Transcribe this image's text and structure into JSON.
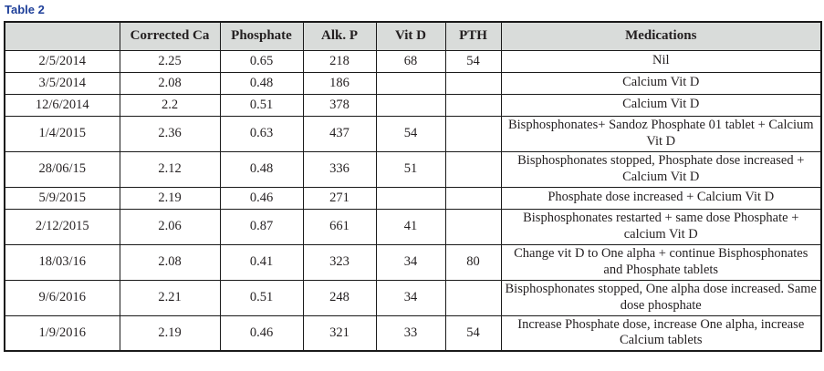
{
  "title": "Table 2",
  "table": {
    "columns": [
      "",
      "Corrected Ca",
      "Phosphate",
      "Alk. P",
      "Vit D",
      "PTH",
      "Medications"
    ],
    "rows": [
      {
        "date": "2/5/2014",
        "corrected_ca": "2.25",
        "phosphate": "0.65",
        "alk_p": "218",
        "vit_d": "68",
        "pth": "54",
        "medications": "Nil"
      },
      {
        "date": "3/5/2014",
        "corrected_ca": "2.08",
        "phosphate": "0.48",
        "alk_p": "186",
        "vit_d": "",
        "pth": "",
        "medications": "Calcium Vit D"
      },
      {
        "date": "12/6/2014",
        "corrected_ca": "2.2",
        "phosphate": "0.51",
        "alk_p": "378",
        "vit_d": "",
        "pth": "",
        "medications": "Calcium Vit D"
      },
      {
        "date": "1/4/2015",
        "corrected_ca": "2.36",
        "phosphate": "0.63",
        "alk_p": "437",
        "vit_d": "54",
        "pth": "",
        "medications": "Bisphosphonates+  Sandoz Phosphate 01 tablet + Calcium Vit D"
      },
      {
        "date": "28/06/15",
        "corrected_ca": "2.12",
        "phosphate": "0.48",
        "alk_p": "336",
        "vit_d": "51",
        "pth": "",
        "medications": "Bisphosphonates stopped,  Phosphate dose increased + Calcium Vit D"
      },
      {
        "date": "5/9/2015",
        "corrected_ca": "2.19",
        "phosphate": "0.46",
        "alk_p": "271",
        "vit_d": "",
        "pth": "",
        "medications": "Phosphate dose increased + Calcium Vit D"
      },
      {
        "date": "2/12/2015",
        "corrected_ca": "2.06",
        "phosphate": "0.87",
        "alk_p": "661",
        "vit_d": "41",
        "pth": "",
        "medications": "Bisphosphonates restarted + same dose Phosphate + calcium Vit D"
      },
      {
        "date": "18/03/16",
        "corrected_ca": "2.08",
        "phosphate": "0.41",
        "alk_p": "323",
        "vit_d": "34",
        "pth": "80",
        "medications": "Change vit D to One alpha + continue Bisphosphonates and Phosphate tablets"
      },
      {
        "date": "9/6/2016",
        "corrected_ca": "2.21",
        "phosphate": "0.51",
        "alk_p": "248",
        "vit_d": "34",
        "pth": "",
        "medications": "Bisphosphonates stopped, One alpha dose increased. Same dose phosphate"
      },
      {
        "date": "1/9/2016",
        "corrected_ca": "2.19",
        "phosphate": "0.46",
        "alk_p": "321",
        "vit_d": "33",
        "pth": "54",
        "medications": "Increase Phosphate dose, increase One alpha, increase Calcium tablets"
      }
    ]
  },
  "colors": {
    "title_blue": "#1e3f99",
    "header_bg": "#d9dcda",
    "border": "#1a1a1a",
    "text": "#231f20"
  }
}
